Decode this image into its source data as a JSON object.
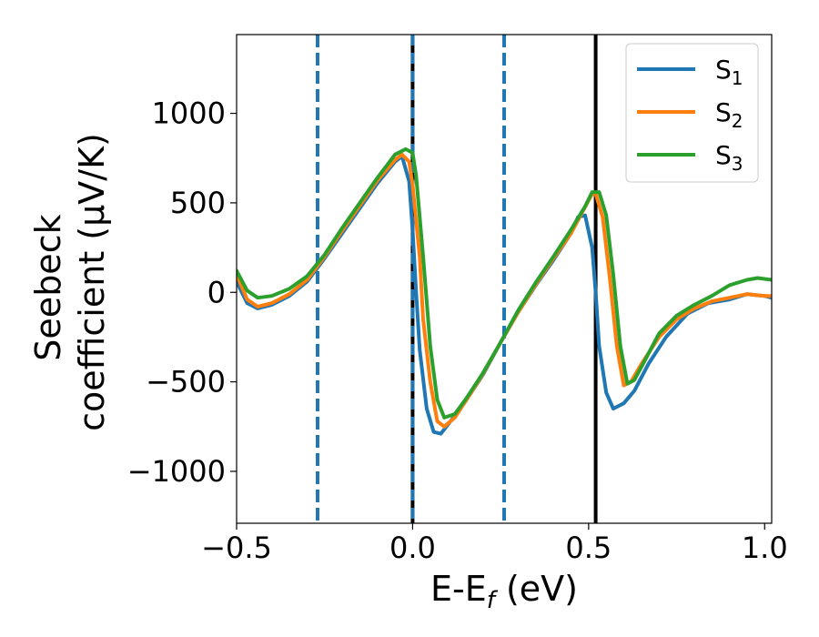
{
  "chart_data": {
    "type": "line",
    "title": "",
    "xlabel": "E-E$_f$ (eV)",
    "xlabel_parts": {
      "main": "E-E",
      "sub": "f",
      "tail": " (eV)"
    },
    "ylabel_lines": [
      "Seebeck",
      "coefficient  (μV/K)"
    ],
    "xlim": [
      -0.5,
      1.02
    ],
    "ylim": [
      -1290,
      1440
    ],
    "xticks": [
      -0.5,
      0.0,
      0.5,
      1.0
    ],
    "xtick_labels": [
      "−0.5",
      "0.0",
      "0.5",
      "1.0"
    ],
    "yticks": [
      -1000,
      -500,
      0,
      500,
      1000
    ],
    "ytick_labels": [
      "−1000",
      "−500",
      "0",
      "500",
      "1000"
    ],
    "grid": false,
    "legend_position": "top-right",
    "vertical_lines": [
      {
        "x": -0.27,
        "style": "dashed",
        "color": "#1f77b4"
      },
      {
        "x": 0.0,
        "style": "solid",
        "color": "#000000"
      },
      {
        "x": 0.0,
        "style": "dashed-overlay",
        "color": "#1f77b4"
      },
      {
        "x": 0.26,
        "style": "dashed",
        "color": "#1f77b4"
      },
      {
        "x": 0.52,
        "style": "solid",
        "color": "#000000"
      }
    ],
    "series": [
      {
        "name": "S1",
        "label_main": "S",
        "label_sub": "1",
        "color": "#1f77b4",
        "points": [
          [
            -0.5,
            60
          ],
          [
            -0.47,
            -60
          ],
          [
            -0.44,
            -90
          ],
          [
            -0.4,
            -70
          ],
          [
            -0.35,
            -20
          ],
          [
            -0.3,
            60
          ],
          [
            -0.25,
            190
          ],
          [
            -0.2,
            330
          ],
          [
            -0.15,
            470
          ],
          [
            -0.1,
            610
          ],
          [
            -0.05,
            730
          ],
          [
            -0.03,
            760
          ],
          [
            -0.01,
            620
          ],
          [
            0.0,
            350
          ],
          [
            0.01,
            0
          ],
          [
            0.02,
            -320
          ],
          [
            0.04,
            -650
          ],
          [
            0.06,
            -780
          ],
          [
            0.08,
            -790
          ],
          [
            0.1,
            -740
          ],
          [
            0.15,
            -610
          ],
          [
            0.2,
            -460
          ],
          [
            0.25,
            -280
          ],
          [
            0.3,
            -110
          ],
          [
            0.35,
            40
          ],
          [
            0.4,
            180
          ],
          [
            0.45,
            330
          ],
          [
            0.47,
            420
          ],
          [
            0.49,
            430
          ],
          [
            0.51,
            250
          ],
          [
            0.52,
            0
          ],
          [
            0.53,
            -300
          ],
          [
            0.55,
            -560
          ],
          [
            0.57,
            -650
          ],
          [
            0.6,
            -620
          ],
          [
            0.63,
            -550
          ],
          [
            0.67,
            -400
          ],
          [
            0.72,
            -250
          ],
          [
            0.78,
            -120
          ],
          [
            0.84,
            -60
          ],
          [
            0.9,
            -40
          ],
          [
            0.95,
            -10
          ],
          [
            1.0,
            -20
          ],
          [
            1.02,
            -30
          ]
        ]
      },
      {
        "name": "S2",
        "label_main": "S",
        "label_sub": "2",
        "color": "#ff7f0e",
        "points": [
          [
            -0.5,
            100
          ],
          [
            -0.47,
            -40
          ],
          [
            -0.44,
            -80
          ],
          [
            -0.4,
            -60
          ],
          [
            -0.35,
            -10
          ],
          [
            -0.3,
            70
          ],
          [
            -0.25,
            200
          ],
          [
            -0.2,
            345
          ],
          [
            -0.15,
            485
          ],
          [
            -0.1,
            625
          ],
          [
            -0.05,
            740
          ],
          [
            -0.03,
            770
          ],
          [
            -0.01,
            730
          ],
          [
            0.0,
            600
          ],
          [
            0.02,
            200
          ],
          [
            0.03,
            -150
          ],
          [
            0.05,
            -500
          ],
          [
            0.07,
            -720
          ],
          [
            0.09,
            -750
          ],
          [
            0.12,
            -700
          ],
          [
            0.15,
            -610
          ],
          [
            0.2,
            -455
          ],
          [
            0.25,
            -280
          ],
          [
            0.3,
            -110
          ],
          [
            0.35,
            45
          ],
          [
            0.4,
            190
          ],
          [
            0.45,
            330
          ],
          [
            0.48,
            440
          ],
          [
            0.51,
            550
          ],
          [
            0.52,
            550
          ],
          [
            0.54,
            420
          ],
          [
            0.56,
            80
          ],
          [
            0.58,
            -300
          ],
          [
            0.6,
            -520
          ],
          [
            0.62,
            -500
          ],
          [
            0.65,
            -400
          ],
          [
            0.7,
            -250
          ],
          [
            0.75,
            -150
          ],
          [
            0.8,
            -90
          ],
          [
            0.85,
            -50
          ],
          [
            0.9,
            -30
          ],
          [
            0.95,
            -10
          ],
          [
            1.0,
            -20
          ],
          [
            1.02,
            -20
          ]
        ]
      },
      {
        "name": "S3",
        "label_main": "S",
        "label_sub": "3",
        "color": "#2ca02c",
        "points": [
          [
            -0.5,
            120
          ],
          [
            -0.47,
            10
          ],
          [
            -0.44,
            -30
          ],
          [
            -0.4,
            -20
          ],
          [
            -0.35,
            20
          ],
          [
            -0.3,
            90
          ],
          [
            -0.25,
            210
          ],
          [
            -0.2,
            360
          ],
          [
            -0.15,
            500
          ],
          [
            -0.1,
            640
          ],
          [
            -0.05,
            770
          ],
          [
            -0.02,
            800
          ],
          [
            0.0,
            780
          ],
          [
            0.01,
            650
          ],
          [
            0.03,
            200
          ],
          [
            0.05,
            -300
          ],
          [
            0.07,
            -600
          ],
          [
            0.09,
            -700
          ],
          [
            0.12,
            -680
          ],
          [
            0.15,
            -600
          ],
          [
            0.2,
            -450
          ],
          [
            0.25,
            -280
          ],
          [
            0.3,
            -100
          ],
          [
            0.35,
            55
          ],
          [
            0.4,
            200
          ],
          [
            0.45,
            350
          ],
          [
            0.49,
            480
          ],
          [
            0.51,
            560
          ],
          [
            0.53,
            560
          ],
          [
            0.55,
            430
          ],
          [
            0.57,
            100
          ],
          [
            0.59,
            -300
          ],
          [
            0.61,
            -510
          ],
          [
            0.63,
            -490
          ],
          [
            0.66,
            -380
          ],
          [
            0.7,
            -230
          ],
          [
            0.75,
            -130
          ],
          [
            0.8,
            -70
          ],
          [
            0.85,
            -20
          ],
          [
            0.9,
            40
          ],
          [
            0.95,
            70
          ],
          [
            0.98,
            80
          ],
          [
            1.02,
            70
          ]
        ]
      }
    ]
  }
}
